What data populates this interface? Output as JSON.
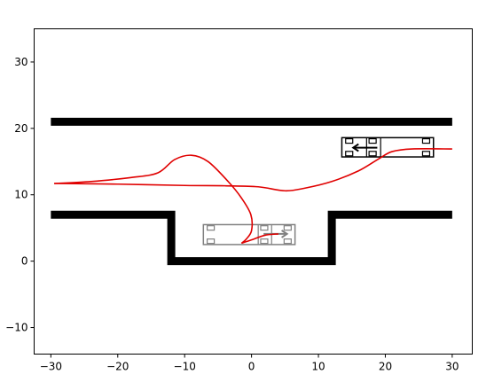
{
  "chart_data": {
    "type": "line",
    "title": "",
    "xlabel": "",
    "ylabel": "",
    "xlim": [
      -32.5,
      33
    ],
    "ylim": [
      -14,
      35
    ],
    "grid": false,
    "x_ticks": [
      -30,
      -20,
      -10,
      0,
      10,
      20,
      30
    ],
    "y_ticks": [
      -10,
      0,
      10,
      20,
      30
    ],
    "x_tick_labels": [
      "−30",
      "−20",
      "−10",
      "0",
      "10",
      "20",
      "30"
    ],
    "y_tick_labels": [
      "−10",
      "0",
      "10",
      "20",
      "30"
    ],
    "walls": {
      "color": "#000000",
      "segments": [
        {
          "name": "upper-wall",
          "points": [
            [
              -30,
              21
            ],
            [
              30,
              21
            ]
          ]
        },
        {
          "name": "lower-wall-left",
          "points": [
            [
              -30,
              7
            ],
            [
              -12,
              7
            ],
            [
              -12,
              0
            ],
            [
              12,
              0
            ],
            [
              12,
              7
            ],
            [
              30,
              7
            ]
          ]
        }
      ]
    },
    "series": [
      {
        "color": "#e00000",
        "points": [
          [
            -29.5,
            11.7
          ],
          [
            -20,
            11.6
          ],
          [
            -10,
            11.4
          ],
          [
            -4,
            11.35
          ],
          [
            1,
            11.2
          ],
          [
            5,
            10.6
          ],
          [
            8,
            11
          ],
          [
            12,
            12
          ],
          [
            16,
            13.6
          ],
          [
            19,
            15.4
          ],
          [
            21,
            16.5
          ],
          [
            24,
            16.9
          ],
          [
            30,
            16.9
          ]
        ]
      },
      {
        "color": "#e00000",
        "points": [
          [
            -29.5,
            11.7
          ],
          [
            -24,
            12
          ],
          [
            -18,
            12.6
          ],
          [
            -14,
            13.3
          ],
          [
            -11.5,
            15.3
          ],
          [
            -9,
            15.95
          ],
          [
            -6.5,
            15
          ],
          [
            -3.5,
            12
          ],
          [
            -1.5,
            9.5
          ],
          [
            -0.1,
            7
          ],
          [
            0,
            4.6
          ],
          [
            -0.8,
            3.3
          ],
          [
            -1.5,
            2.7
          ]
        ]
      },
      {
        "color": "#e00000",
        "points": [
          [
            -1.5,
            2.7
          ],
          [
            0,
            3.2
          ],
          [
            2,
            3.9
          ],
          [
            4,
            4.1
          ]
        ]
      }
    ],
    "vehicles": [
      {
        "name": "vehicle-start",
        "color": "#000000",
        "arrow": "left"
      },
      {
        "name": "vehicle-parked",
        "color": "#808080",
        "arrow": "right"
      }
    ]
  }
}
